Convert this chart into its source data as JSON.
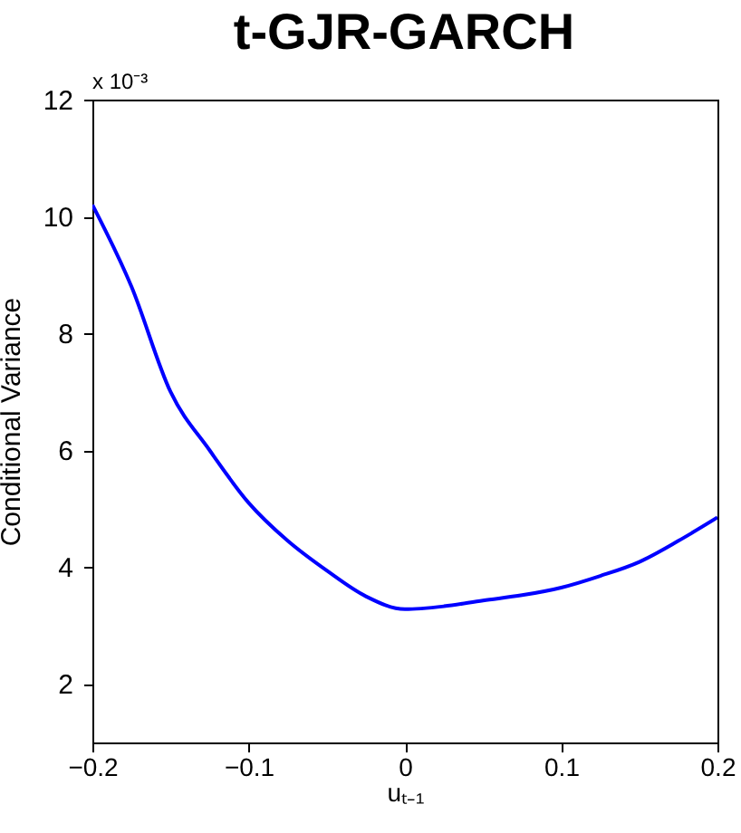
{
  "chart_data": {
    "type": "line",
    "title": "t-GJR-GARCH",
    "xlabel": "uₜ₋₁",
    "ylabel": "Conditional Variance",
    "annotations": [
      "x 10⁻³"
    ],
    "x": [
      -0.2,
      -0.175,
      -0.15,
      -0.125,
      -0.1,
      -0.075,
      -0.05,
      -0.025,
      0,
      0.025,
      0.05,
      0.075,
      0.1,
      0.125,
      0.15,
      0.175,
      0.2
    ],
    "series": [
      {
        "color": "#0000ff",
        "values": [
          10.2,
          8.8,
          7.0,
          6.0,
          5.1,
          4.45,
          3.94,
          3.5,
          3.28,
          3.33,
          3.43,
          3.52,
          3.65,
          3.85,
          4.09,
          4.45,
          4.85
        ]
      }
    ],
    "xlim": [
      -0.2,
      0.2
    ],
    "xticks": [
      -0.2,
      -0.1,
      0,
      0.1,
      0.2
    ],
    "ylim": [
      1,
      12
    ],
    "yticks": [
      2,
      4,
      6,
      8,
      10,
      12
    ],
    "grid": false
  }
}
